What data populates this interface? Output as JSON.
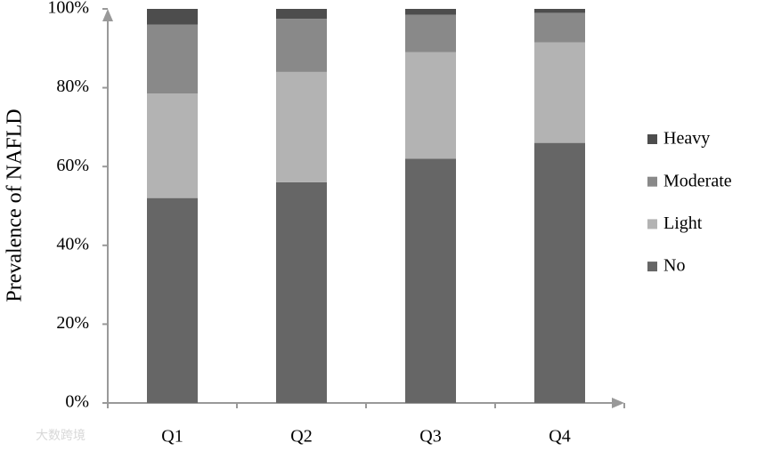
{
  "chart_data": {
    "type": "bar",
    "stacked": true,
    "y_label": "Prevalence of NAFLD",
    "categories": [
      "Q1",
      "Q2",
      "Q3",
      "Q4"
    ],
    "series": [
      {
        "name": "No",
        "color": "#666666",
        "values": [
          52,
          56,
          62,
          66
        ]
      },
      {
        "name": "Light",
        "color": "#b3b3b3",
        "values": [
          26.5,
          28,
          27,
          25.5
        ]
      },
      {
        "name": "Moderate",
        "color": "#898989",
        "values": [
          17.5,
          13.5,
          9.5,
          7.5
        ]
      },
      {
        "name": "Heavy",
        "color": "#4d4d4d",
        "values": [
          4,
          2.5,
          1.5,
          1
        ]
      }
    ],
    "ylim": [
      0,
      100
    ],
    "yticks": [
      {
        "value": 0,
        "label": "0%"
      },
      {
        "value": 20,
        "label": "20%"
      },
      {
        "value": 40,
        "label": "40%"
      },
      {
        "value": 60,
        "label": "60%"
      },
      {
        "value": 80,
        "label": "80%"
      },
      {
        "value": 100,
        "label": "100%"
      }
    ],
    "legend": "right",
    "watermark": "大数跨境"
  }
}
